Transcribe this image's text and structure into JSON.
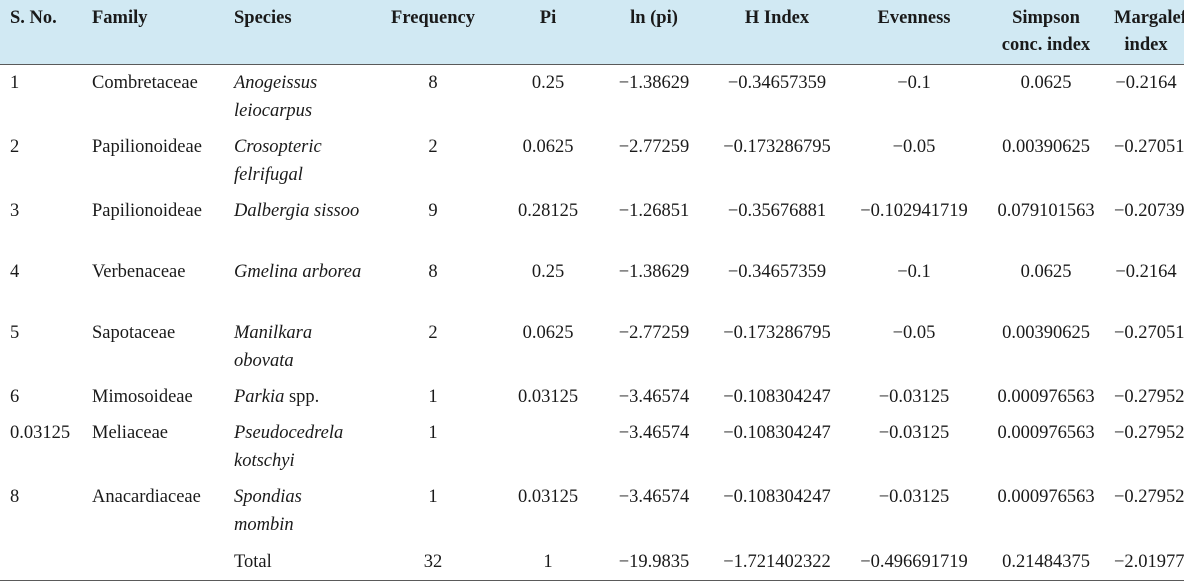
{
  "table": {
    "headers": {
      "sno": "S. No.",
      "family": "Family",
      "species": "Species",
      "frequency": "Frequency",
      "pi": "Pi",
      "lnpi": "ln (pi)",
      "hindex": "H Index",
      "evenness": "Evenness",
      "simpson": "Simpson conc. index",
      "margalef": "Margalef index"
    },
    "rows": [
      {
        "sno": "1",
        "family": "Combretaceae",
        "species": "Anogeissus leiocarpus",
        "species_extra": "",
        "frequency": "8",
        "pi": "0.25",
        "lnpi": "−1.38629",
        "hindex": "−0.34657359",
        "evenness": "−0.1",
        "simpson": "0.0625",
        "margalef": "−0.2164"
      },
      {
        "sno": "2",
        "family": "Papilionoideae",
        "species": "Crosopteric felrifugal",
        "species_extra": "",
        "frequency": "2",
        "pi": "0.0625",
        "lnpi": "−2.77259",
        "hindex": "−0.173286795",
        "evenness": "−0.05",
        "simpson": "0.00390625",
        "margalef": "−0.27051"
      },
      {
        "sno": "3",
        "family": "Papilionoideae",
        "species": "Dalbergia sissoo",
        "species_extra": "",
        "frequency": "9",
        "pi": "0.28125",
        "lnpi": "−1.26851",
        "hindex": "−0.35676881",
        "evenness": "−0.102941719",
        "simpson": "0.079101563",
        "margalef": "−0.20739"
      },
      {
        "sno": "4",
        "family": "Verbenaceae",
        "species": "Gmelina arborea",
        "species_extra": "",
        "frequency": "8",
        "pi": "0.25",
        "lnpi": "−1.38629",
        "hindex": "−0.34657359",
        "evenness": "−0.1",
        "simpson": "0.0625",
        "margalef": "−0.2164"
      },
      {
        "sno": "5",
        "family": "Sapotaceae",
        "species": "Manilkara obovata",
        "species_extra": "",
        "frequency": "2",
        "pi": "0.0625",
        "lnpi": "−2.77259",
        "hindex": "−0.173286795",
        "evenness": "−0.05",
        "simpson": "0.00390625",
        "margalef": "−0.27051"
      },
      {
        "sno": "6",
        "family": "Mimosoideae",
        "species": "Parkia",
        "species_extra": " spp.",
        "frequency": "1",
        "pi": "0.03125",
        "lnpi": "−3.46574",
        "hindex": "−0.108304247",
        "evenness": "−0.03125",
        "simpson": "0.000976563",
        "margalef": "−0.27952"
      },
      {
        "sno": "0.03125",
        "family": "Meliaceae",
        "species": "Pseudocedrela kotschyi",
        "species_extra": "",
        "frequency": "1",
        "pi": "",
        "lnpi": "−3.46574",
        "hindex": "−0.108304247",
        "evenness": "−0.03125",
        "simpson": "0.000976563",
        "margalef": "−0.27952"
      },
      {
        "sno": "8",
        "family": "Anacardiaceae",
        "species": "Spondias mombin",
        "species_extra": "",
        "frequency": "1",
        "pi": "0.03125",
        "lnpi": "−3.46574",
        "hindex": "−0.108304247",
        "evenness": "−0.03125",
        "simpson": "0.000976563",
        "margalef": "−0.27952"
      }
    ],
    "total": {
      "label": "Total",
      "frequency": "32",
      "pi": "1",
      "lnpi": "−19.9835",
      "hindex": "−1.721402322",
      "evenness": "−0.496691719",
      "simpson": "0.21484375",
      "margalef": "−2.01977"
    }
  }
}
